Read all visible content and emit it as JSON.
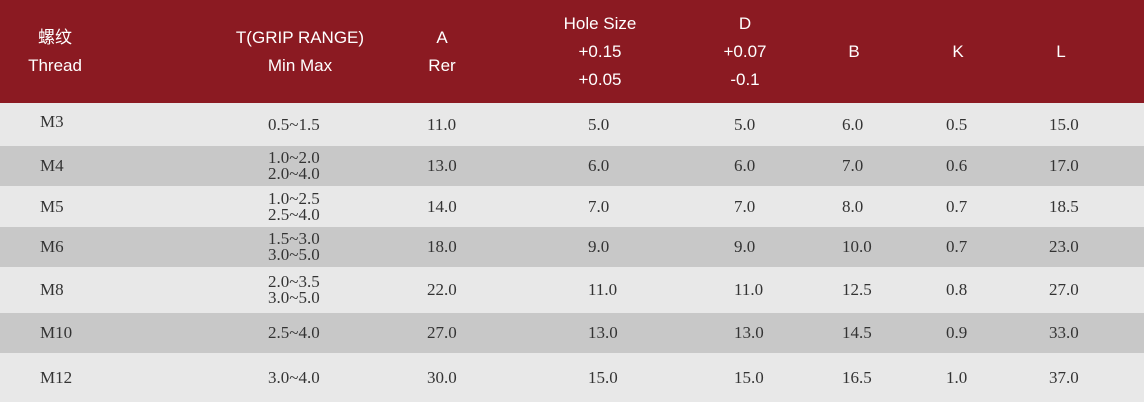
{
  "header": {
    "thread": [
      "螺纹",
      "Thread"
    ],
    "grip": [
      "T(GRIP RANGE)",
      "Min Max"
    ],
    "a": [
      "A",
      "Rer"
    ],
    "hole": [
      "Hole Size",
      "+0.15",
      "+0.05"
    ],
    "d": [
      "D",
      "+0.07",
      "-0.1"
    ],
    "b": [
      "B"
    ],
    "k": [
      "K"
    ],
    "l": [
      "L"
    ]
  },
  "rows": [
    {
      "thread": "M3",
      "grip": [
        "0.5~1.5"
      ],
      "a": "11.0",
      "hole": "5.0",
      "d": "5.0",
      "b": "6.0",
      "k": "0.5",
      "l": "15.0"
    },
    {
      "thread": "M4",
      "grip": [
        "1.0~2.0",
        "2.0~4.0"
      ],
      "a": "13.0",
      "hole": "6.0",
      "d": "6.0",
      "b": "7.0",
      "k": "0.6",
      "l": "17.0"
    },
    {
      "thread": "M5",
      "grip": [
        "1.0~2.5",
        "2.5~4.0"
      ],
      "a": "14.0",
      "hole": "7.0",
      "d": "7.0",
      "b": "8.0",
      "k": "0.7",
      "l": "18.5"
    },
    {
      "thread": "M6",
      "grip": [
        "1.5~3.0",
        "3.0~5.0"
      ],
      "a": "18.0",
      "hole": "9.0",
      "d": "9.0",
      "b": "10.0",
      "k": "0.7",
      "l": "23.0"
    },
    {
      "thread": "M8",
      "grip": [
        "2.0~3.5",
        "3.0~5.0"
      ],
      "a": "22.0",
      "hole": "11.0",
      "d": "11.0",
      "b": "12.5",
      "k": "0.8",
      "l": "27.0"
    },
    {
      "thread": "M10",
      "grip": [
        "2.5~4.0"
      ],
      "a": "27.0",
      "hole": "13.0",
      "d": "13.0",
      "b": "14.5",
      "k": "0.9",
      "l": "33.0"
    },
    {
      "thread": "M12",
      "grip": [
        "3.0~4.0"
      ],
      "a": "30.0",
      "hole": "15.0",
      "d": "15.0",
      "b": "16.5",
      "k": "1.0",
      "l": "37.0"
    }
  ]
}
